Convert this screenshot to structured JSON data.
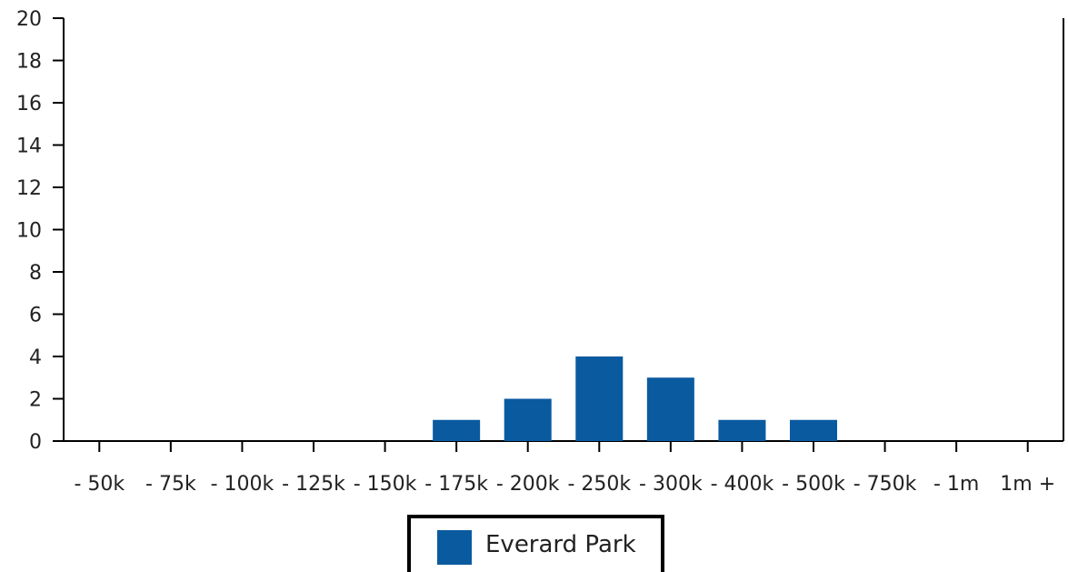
{
  "chart_data": {
    "type": "bar",
    "categories": [
      "- 50k",
      "- 75k",
      "- 100k",
      "- 125k",
      "- 150k",
      "- 175k",
      "- 200k",
      "- 250k",
      "- 300k",
      "- 400k",
      "- 500k",
      "- 750k",
      "- 1m",
      "1m +"
    ],
    "series": [
      {
        "name": "Everard Park",
        "values": [
          0,
          0,
          0,
          0,
          0,
          1,
          2,
          4,
          3,
          1,
          1,
          0,
          0,
          0
        ],
        "color": "#0a5aa0"
      }
    ],
    "yticks": [
      0,
      2,
      4,
      6,
      8,
      10,
      12,
      14,
      16,
      18,
      20
    ],
    "ylim": [
      0,
      20
    ],
    "grid": false,
    "legend_position": "bottom"
  },
  "legend": {
    "label": "Everard Park"
  }
}
